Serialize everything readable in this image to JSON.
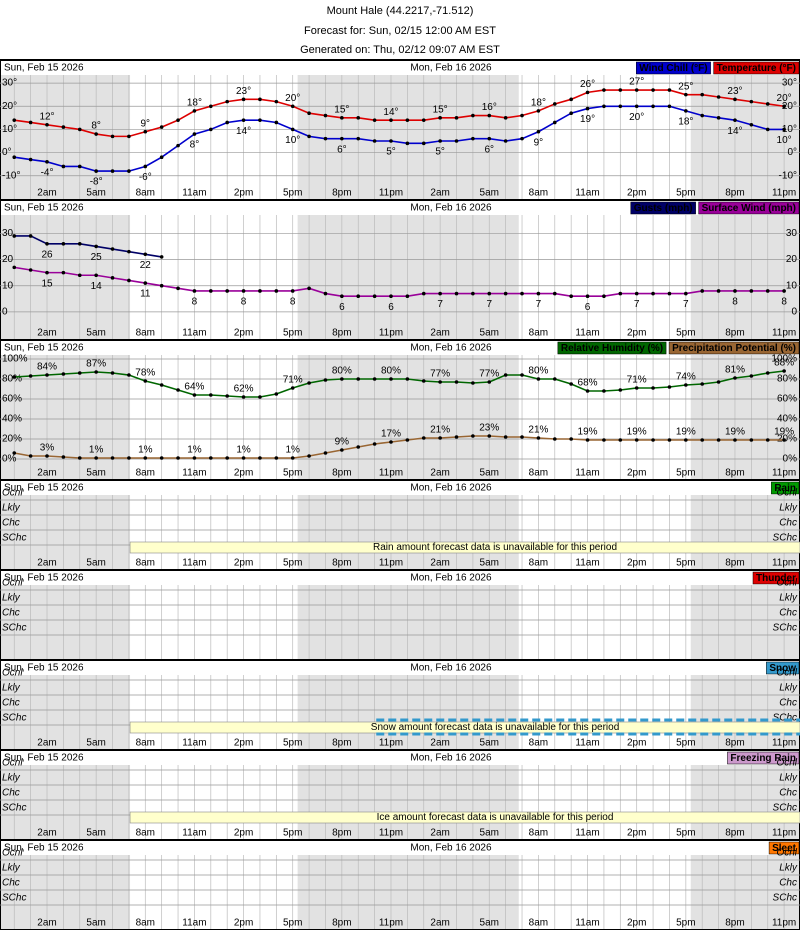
{
  "header": {
    "location": "Mount Hale (44.2217,-71.512)",
    "forecast_for": "Forecast for: Sun, 02/15 12:00 AM EST",
    "generated": "Generated on: Thu, 02/12 09:07 AM EST"
  },
  "time_axis": {
    "x": [
      0,
      1,
      2,
      3,
      4,
      5,
      6,
      7,
      8,
      9,
      10,
      11,
      12,
      13,
      14,
      15,
      16,
      17,
      18,
      19,
      20,
      21,
      22,
      23,
      24,
      25,
      26,
      27,
      28,
      29,
      30,
      31,
      32,
      33,
      34,
      35,
      36,
      37,
      38,
      39,
      40,
      41,
      42,
      43,
      44,
      45,
      46,
      47
    ],
    "xlim": [
      -0.87,
      47.97
    ],
    "xticks": [
      {
        "value": 2,
        "label": "2am"
      },
      {
        "value": 5,
        "label": "5am"
      },
      {
        "value": 8,
        "label": "8am"
      },
      {
        "value": 11,
        "label": "11am"
      },
      {
        "value": 14,
        "label": "2pm"
      },
      {
        "value": 17,
        "label": "5pm"
      },
      {
        "value": 20,
        "label": "8pm"
      },
      {
        "value": 23,
        "label": "11pm"
      },
      {
        "value": 26,
        "label": "2am"
      },
      {
        "value": 29,
        "label": "5am"
      },
      {
        "value": 32,
        "label": "8am"
      },
      {
        "value": 35,
        "label": "11am"
      },
      {
        "value": 38,
        "label": "2pm"
      },
      {
        "value": 41,
        "label": "5pm"
      },
      {
        "value": 44,
        "label": "8pm"
      },
      {
        "value": 47,
        "label": "11pm"
      }
    ],
    "dates": [
      {
        "value": 0,
        "label": "Sun, Feb 15 2026"
      },
      {
        "value": 24,
        "label": "Mon, Feb 16 2026"
      }
    ],
    "night": [
      [
        -0.87,
        7.07
      ],
      [
        17.3,
        30.8
      ],
      [
        41.3,
        47.97
      ]
    ]
  },
  "chart_data": [
    {
      "type": "line",
      "ylim": [
        -14,
        33.5
      ],
      "yticks": [
        {
          "value": -10,
          "label": "-10°"
        },
        {
          "value": 0,
          "label": "0°"
        },
        {
          "value": 10,
          "label": "10°"
        },
        {
          "value": 20,
          "label": "20°"
        },
        {
          "value": 30,
          "label": "30°"
        }
      ],
      "series": [
        {
          "name": "Wind Chill (°F)",
          "color": "#0000cc",
          "values": [
            -2,
            -3,
            -4,
            -6,
            -6,
            -8,
            -8,
            -8,
            -6,
            -2,
            3,
            8,
            10,
            13,
            14,
            14,
            13,
            10,
            7,
            6,
            6,
            6,
            5,
            5,
            4,
            4,
            5,
            5,
            6,
            6,
            5,
            6,
            9,
            13,
            17,
            19,
            20,
            20,
            20,
            20,
            20,
            18,
            16,
            15,
            14,
            12,
            10,
            10
          ],
          "value_labels": [
            null,
            null,
            "-4°",
            null,
            null,
            "-8°",
            null,
            null,
            "-6°",
            null,
            null,
            "8°",
            null,
            null,
            "14°",
            null,
            null,
            "10°",
            null,
            null,
            "6°",
            null,
            null,
            "5°",
            null,
            null,
            "5°",
            null,
            null,
            "6°",
            null,
            null,
            "9°",
            null,
            null,
            "19°",
            null,
            null,
            "20°",
            null,
            null,
            "18°",
            null,
            null,
            "14°",
            null,
            null,
            "10°"
          ]
        },
        {
          "name": "Temperature (°F)",
          "color": "#dd0000",
          "values": [
            14,
            13,
            12,
            11,
            10,
            8,
            7,
            7,
            9,
            11,
            14,
            18,
            20,
            22,
            23,
            23,
            22,
            20,
            17,
            16,
            15,
            15,
            14,
            14,
            14,
            14,
            15,
            15,
            16,
            16,
            15,
            16,
            18,
            21,
            23,
            26,
            27,
            27,
            27,
            27,
            27,
            25,
            25,
            24,
            23,
            22,
            21,
            20
          ],
          "value_labels": [
            null,
            null,
            "12°",
            null,
            null,
            "8°",
            null,
            null,
            "9°",
            null,
            null,
            "18°",
            null,
            null,
            "23°",
            null,
            null,
            "20°",
            null,
            null,
            "15°",
            null,
            null,
            "14°",
            null,
            null,
            "15°",
            null,
            null,
            "16°",
            null,
            null,
            "18°",
            null,
            null,
            "26°",
            null,
            null,
            "27°",
            null,
            null,
            "25°",
            null,
            null,
            "23°",
            null,
            null,
            "20°"
          ]
        }
      ]
    },
    {
      "type": "line",
      "ylim": [
        -5,
        37
      ],
      "yticks": [
        0,
        10,
        20,
        30
      ],
      "series": [
        {
          "name": "Gusts (mph)",
          "color": "#000066",
          "values": [
            29,
            29,
            26,
            26,
            26,
            25,
            24,
            23,
            22,
            21,
            null,
            null,
            null,
            null,
            null,
            null,
            null,
            null,
            null,
            null,
            null,
            null,
            null,
            null,
            null,
            null,
            null,
            null,
            null,
            null,
            null,
            null,
            null,
            null,
            null,
            null,
            null,
            null,
            null,
            null,
            null,
            null,
            null,
            null,
            null,
            null,
            null,
            null
          ],
          "value_labels": [
            null,
            null,
            "26",
            null,
            null,
            "25",
            null,
            null,
            "22",
            null,
            null,
            null,
            null,
            null,
            null,
            null,
            null,
            null,
            null,
            null,
            null,
            null,
            null,
            null,
            null,
            null,
            null,
            null,
            null,
            null,
            null,
            null,
            null,
            null,
            null,
            null,
            null,
            null,
            null,
            null,
            null,
            null,
            null,
            null,
            null,
            null,
            null,
            null
          ]
        },
        {
          "name": "Surface Wind (mph)",
          "color": "#990099",
          "values": [
            17,
            16,
            15,
            15,
            14,
            14,
            13,
            12,
            11,
            10,
            9,
            8,
            8,
            8,
            8,
            8,
            8,
            8,
            9,
            7,
            6,
            6,
            6,
            6,
            6,
            7,
            7,
            7,
            7,
            7,
            7,
            7,
            7,
            7,
            6,
            6,
            6,
            7,
            7,
            7,
            7,
            7,
            8,
            8,
            8,
            8,
            8,
            8
          ],
          "value_labels": [
            null,
            null,
            "15",
            null,
            null,
            "14",
            null,
            null,
            "11",
            null,
            null,
            "8",
            null,
            null,
            "8",
            null,
            null,
            "8",
            null,
            null,
            "6",
            null,
            null,
            "6",
            null,
            null,
            "7",
            null,
            null,
            "7",
            null,
            null,
            "7",
            null,
            null,
            "6",
            null,
            null,
            "7",
            null,
            null,
            "7",
            null,
            null,
            "8",
            null,
            null,
            "8"
          ]
        }
      ]
    },
    {
      "type": "line",
      "ylim": [
        -7,
        104
      ],
      "yticks": [
        {
          "value": 0,
          "label": "0%"
        },
        {
          "value": 20,
          "label": "20%"
        },
        {
          "value": 40,
          "label": "40%"
        },
        {
          "value": 60,
          "label": "60%"
        },
        {
          "value": 80,
          "label": "80%"
        },
        {
          "value": 100,
          "label": "100%"
        }
      ],
      "series": [
        {
          "name": "Relative Humidity (%)",
          "color": "#006600",
          "values": [
            82,
            83,
            84,
            85,
            86,
            87,
            86,
            84,
            78,
            74,
            69,
            64,
            64,
            63,
            62,
            62,
            65,
            71,
            76,
            79,
            80,
            80,
            80,
            80,
            80,
            78,
            77,
            77,
            76,
            77,
            84,
            84,
            80,
            80,
            75,
            68,
            68,
            69,
            71,
            71,
            72,
            74,
            75,
            77,
            81,
            83,
            86,
            88
          ],
          "value_labels": [
            null,
            null,
            "84%",
            null,
            null,
            "87%",
            null,
            null,
            "78%",
            null,
            null,
            "64%",
            null,
            null,
            "62%",
            null,
            null,
            "71%",
            null,
            null,
            "80%",
            null,
            null,
            "80%",
            null,
            null,
            "77%",
            null,
            null,
            "77%",
            null,
            null,
            "80%",
            null,
            null,
            "68%",
            null,
            null,
            "71%",
            null,
            null,
            "74%",
            null,
            null,
            "81%",
            null,
            null,
            "88%"
          ]
        },
        {
          "name": "Precipitation Potential (%)",
          "color": "#996633",
          "values": [
            6,
            3,
            3,
            2,
            1,
            1,
            1,
            1,
            1,
            1,
            1,
            1,
            1,
            1,
            1,
            1,
            1,
            1,
            3,
            6,
            9,
            12,
            15,
            17,
            19,
            21,
            21,
            22,
            23,
            23,
            22,
            22,
            21,
            20,
            20,
            19,
            19,
            19,
            19,
            19,
            19,
            19,
            19,
            19,
            19,
            19,
            19,
            19
          ],
          "value_labels": [
            null,
            null,
            "3%",
            null,
            null,
            "1%",
            null,
            null,
            "1%",
            null,
            null,
            "1%",
            null,
            null,
            "1%",
            null,
            null,
            "1%",
            null,
            null,
            "9%",
            null,
            null,
            "17%",
            null,
            null,
            "21%",
            null,
            null,
            "23%",
            null,
            null,
            "21%",
            null,
            null,
            "19%",
            null,
            null,
            "19%",
            null,
            null,
            "19%",
            null,
            null,
            "19%",
            null,
            null,
            "19%"
          ]
        }
      ]
    },
    {
      "type": "weather",
      "name": "Rain",
      "color": "#009900",
      "levels": [
        "Ocnl",
        "Lkly",
        "Chc",
        "SChc"
      ],
      "message": "Rain amount forecast data is unavailable for this period"
    },
    {
      "type": "weather",
      "name": "Thunder",
      "color": "#dd0000",
      "levels": [
        "Ocnl",
        "Lkly",
        "Chc",
        "SChc"
      ]
    },
    {
      "type": "weather",
      "name": "Snow",
      "color": "#3399cc",
      "levels": [
        "Ocnl",
        "Lkly",
        "Chc",
        "SChc"
      ],
      "message": "Snow amount forecast data is unavailable for this period",
      "bars": [
        {
          "from": 22.1,
          "to": 47.97
        }
      ]
    },
    {
      "type": "weather",
      "name": "Freezing Rain",
      "color": "#cc99cc",
      "levels": [
        "Ocnl",
        "Lkly",
        "Chc",
        "SChc"
      ],
      "message": "Ice amount forecast data is unavailable for this period"
    },
    {
      "type": "weather",
      "name": "Sleet",
      "color": "#ff7700",
      "levels": [
        "Ocnl",
        "Lkly",
        "Chc",
        "SChc"
      ]
    }
  ]
}
